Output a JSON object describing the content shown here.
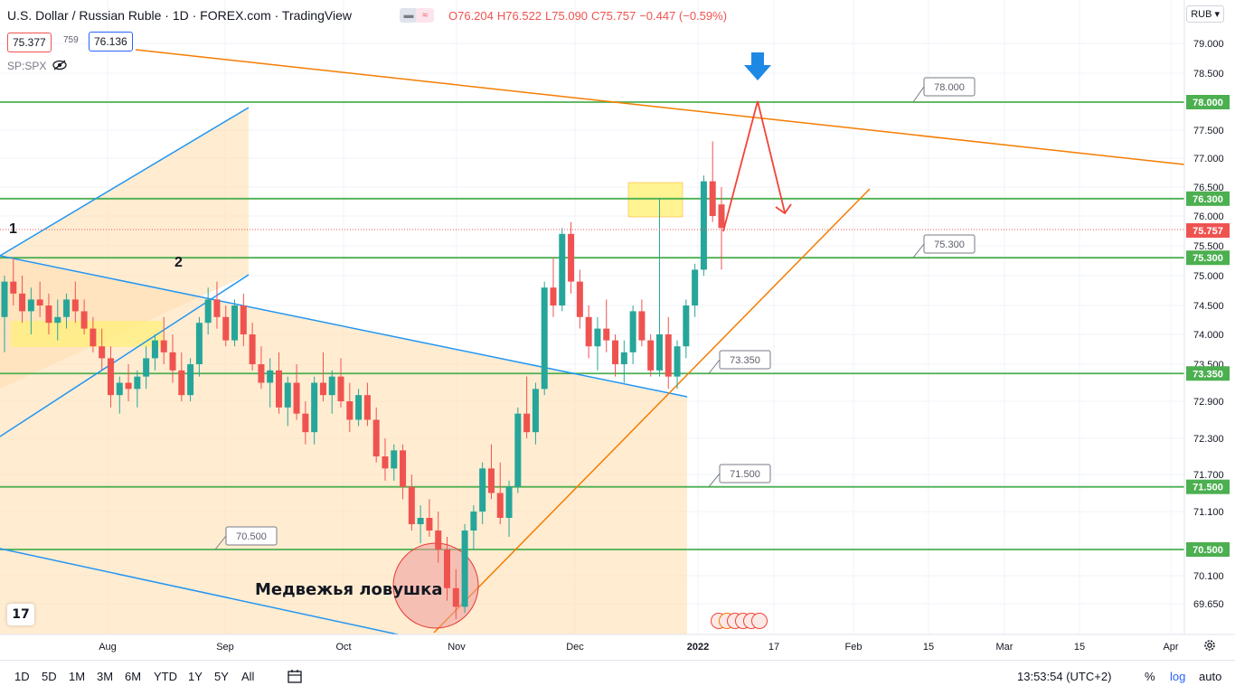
{
  "header": {
    "title": "U.S. Dollar / Russian Ruble · 1D · FOREX.com · TradingView",
    "ohlc": {
      "o": "O76.204",
      "h": "H76.522",
      "l": "L75.090",
      "c": "C75.757",
      "chg": "−0.447 (−0.59%)"
    },
    "sell_price": "75.377",
    "spread": "759",
    "buy_price": "76.136",
    "compare_symbol": "SP:SPX",
    "currency": "RUB"
  },
  "chart_data": {
    "type": "candlestick",
    "y_axis_ticks": [
      "79.000",
      "78.500",
      "78.000",
      "77.500",
      "77.000",
      "76.500",
      "76.000",
      "75.500",
      "75.000",
      "74.500",
      "74.000",
      "73.500",
      "72.900",
      "72.300",
      "71.700",
      "71.100",
      "70.500",
      "70.100",
      "69.650"
    ],
    "x_axis_ticks": [
      "Aug",
      "Sep",
      "Oct",
      "Nov",
      "Dec",
      "2022",
      "17",
      "Feb",
      "15",
      "Mar",
      "15",
      "Apr"
    ],
    "current_price": "75.757",
    "price_tags": [
      "78.000",
      "76.300",
      "75.300",
      "73.350",
      "71.500",
      "70.500"
    ],
    "level_labels": [
      "78.000",
      "75.300",
      "73.350",
      "71.500",
      "70.500"
    ],
    "annotations": {
      "wave_1": "1",
      "wave_2": "2",
      "bear_trap": "Медвежья ловушка"
    },
    "colors": {
      "up": "#26a69a",
      "down": "#ef5350",
      "level": "#4caf50",
      "channel": "#2196f3",
      "trend": "#f57c00",
      "forecast": "#f44336",
      "arrow": "#1e88e5",
      "zone": "#ffe0b2",
      "highlight": "#fff176"
    },
    "candles": [
      [
        74.3,
        75.0,
        73.7,
        74.9
      ],
      [
        74.9,
        75.3,
        74.5,
        74.7
      ],
      [
        74.7,
        75.0,
        74.2,
        74.4
      ],
      [
        74.4,
        74.8,
        74.0,
        74.6
      ],
      [
        74.6,
        74.9,
        74.3,
        74.5
      ],
      [
        74.5,
        74.7,
        74.0,
        74.2
      ],
      [
        74.2,
        74.6,
        73.9,
        74.3
      ],
      [
        74.3,
        74.7,
        74.1,
        74.6
      ],
      [
        74.6,
        74.9,
        74.2,
        74.4
      ],
      [
        74.4,
        74.6,
        74.0,
        74.1
      ],
      [
        74.1,
        74.3,
        73.7,
        73.8
      ],
      [
        73.8,
        74.1,
        73.4,
        73.6
      ],
      [
        73.6,
        73.8,
        72.8,
        73.0
      ],
      [
        73.0,
        73.3,
        72.7,
        73.2
      ],
      [
        73.2,
        73.5,
        72.9,
        73.1
      ],
      [
        73.1,
        73.4,
        72.8,
        73.3
      ],
      [
        73.3,
        73.8,
        73.1,
        73.6
      ],
      [
        73.6,
        74.0,
        73.4,
        73.9
      ],
      [
        73.9,
        74.3,
        73.5,
        73.7
      ],
      [
        73.7,
        74.0,
        73.2,
        73.4
      ],
      [
        73.4,
        73.7,
        72.9,
        73.0
      ],
      [
        73.0,
        73.6,
        72.9,
        73.5
      ],
      [
        73.5,
        74.3,
        73.3,
        74.2
      ],
      [
        74.2,
        74.8,
        74.0,
        74.6
      ],
      [
        74.6,
        74.9,
        74.1,
        74.3
      ],
      [
        74.3,
        74.5,
        73.8,
        73.9
      ],
      [
        73.9,
        74.6,
        73.8,
        74.5
      ],
      [
        74.5,
        74.7,
        73.8,
        74.0
      ],
      [
        74.0,
        74.2,
        73.4,
        73.5
      ],
      [
        73.5,
        73.8,
        73.1,
        73.2
      ],
      [
        73.2,
        73.6,
        72.8,
        73.4
      ],
      [
        73.4,
        73.7,
        72.7,
        72.8
      ],
      [
        72.8,
        73.3,
        72.5,
        73.2
      ],
      [
        73.2,
        73.5,
        72.6,
        72.7
      ],
      [
        72.7,
        72.9,
        72.2,
        72.4
      ],
      [
        72.4,
        73.3,
        72.2,
        73.2
      ],
      [
        73.2,
        73.7,
        72.9,
        73.0
      ],
      [
        73.0,
        73.4,
        72.7,
        73.3
      ],
      [
        73.3,
        73.6,
        72.8,
        72.9
      ],
      [
        72.9,
        73.2,
        72.4,
        72.6
      ],
      [
        72.6,
        73.1,
        72.5,
        73.0
      ],
      [
        73.0,
        73.2,
        72.5,
        72.6
      ],
      [
        72.6,
        72.8,
        71.9,
        72.0
      ],
      [
        72.0,
        72.3,
        71.6,
        71.8
      ],
      [
        71.8,
        72.2,
        71.6,
        72.1
      ],
      [
        72.1,
        72.2,
        71.3,
        71.5
      ],
      [
        71.5,
        71.7,
        70.8,
        70.9
      ],
      [
        70.9,
        71.2,
        70.6,
        71.0
      ],
      [
        71.0,
        71.3,
        70.7,
        70.8
      ],
      [
        70.8,
        71.1,
        70.3,
        70.5
      ],
      [
        70.5,
        70.7,
        69.7,
        69.9
      ],
      [
        69.9,
        70.2,
        69.4,
        69.6
      ],
      [
        69.6,
        70.9,
        69.5,
        70.8
      ],
      [
        70.8,
        71.2,
        70.5,
        71.1
      ],
      [
        71.1,
        71.9,
        70.9,
        71.8
      ],
      [
        71.8,
        72.2,
        71.3,
        71.4
      ],
      [
        71.4,
        71.9,
        70.9,
        71.0
      ],
      [
        71.0,
        71.6,
        70.7,
        71.5
      ],
      [
        71.5,
        72.8,
        71.4,
        72.7
      ],
      [
        72.7,
        73.3,
        72.3,
        72.4
      ],
      [
        72.4,
        73.2,
        72.2,
        73.1
      ],
      [
        73.1,
        74.9,
        73.0,
        74.8
      ],
      [
        74.8,
        75.3,
        74.3,
        74.5
      ],
      [
        74.5,
        75.8,
        74.4,
        75.7
      ],
      [
        75.7,
        75.9,
        74.7,
        74.9
      ],
      [
        74.9,
        75.1,
        74.1,
        74.3
      ],
      [
        74.3,
        74.5,
        73.6,
        73.8
      ],
      [
        73.8,
        74.3,
        73.4,
        74.1
      ],
      [
        74.1,
        74.6,
        73.7,
        73.9
      ],
      [
        73.9,
        74.0,
        73.3,
        73.5
      ],
      [
        73.5,
        73.9,
        73.2,
        73.7
      ],
      [
        73.7,
        74.5,
        73.5,
        74.4
      ],
      [
        74.4,
        74.6,
        73.8,
        73.9
      ],
      [
        73.9,
        74.0,
        73.3,
        73.4
      ],
      [
        73.4,
        76.3,
        73.3,
        74.0
      ],
      [
        74.0,
        74.3,
        73.1,
        73.3
      ],
      [
        73.3,
        73.9,
        73.1,
        73.8
      ],
      [
        73.8,
        74.6,
        73.6,
        74.5
      ],
      [
        74.5,
        75.2,
        74.3,
        75.1
      ],
      [
        75.1,
        76.7,
        75.0,
        76.6
      ],
      [
        76.6,
        77.3,
        75.9,
        76.0
      ],
      [
        76.2,
        76.5,
        75.1,
        75.8
      ]
    ]
  },
  "toolbar": {
    "ranges": [
      "1D",
      "5D",
      "1M",
      "3M",
      "6M",
      "YTD",
      "1Y",
      "5Y",
      "All"
    ],
    "clock": "13:53:54 (UTC+2)",
    "percent": "%",
    "log": "log",
    "auto": "auto"
  }
}
